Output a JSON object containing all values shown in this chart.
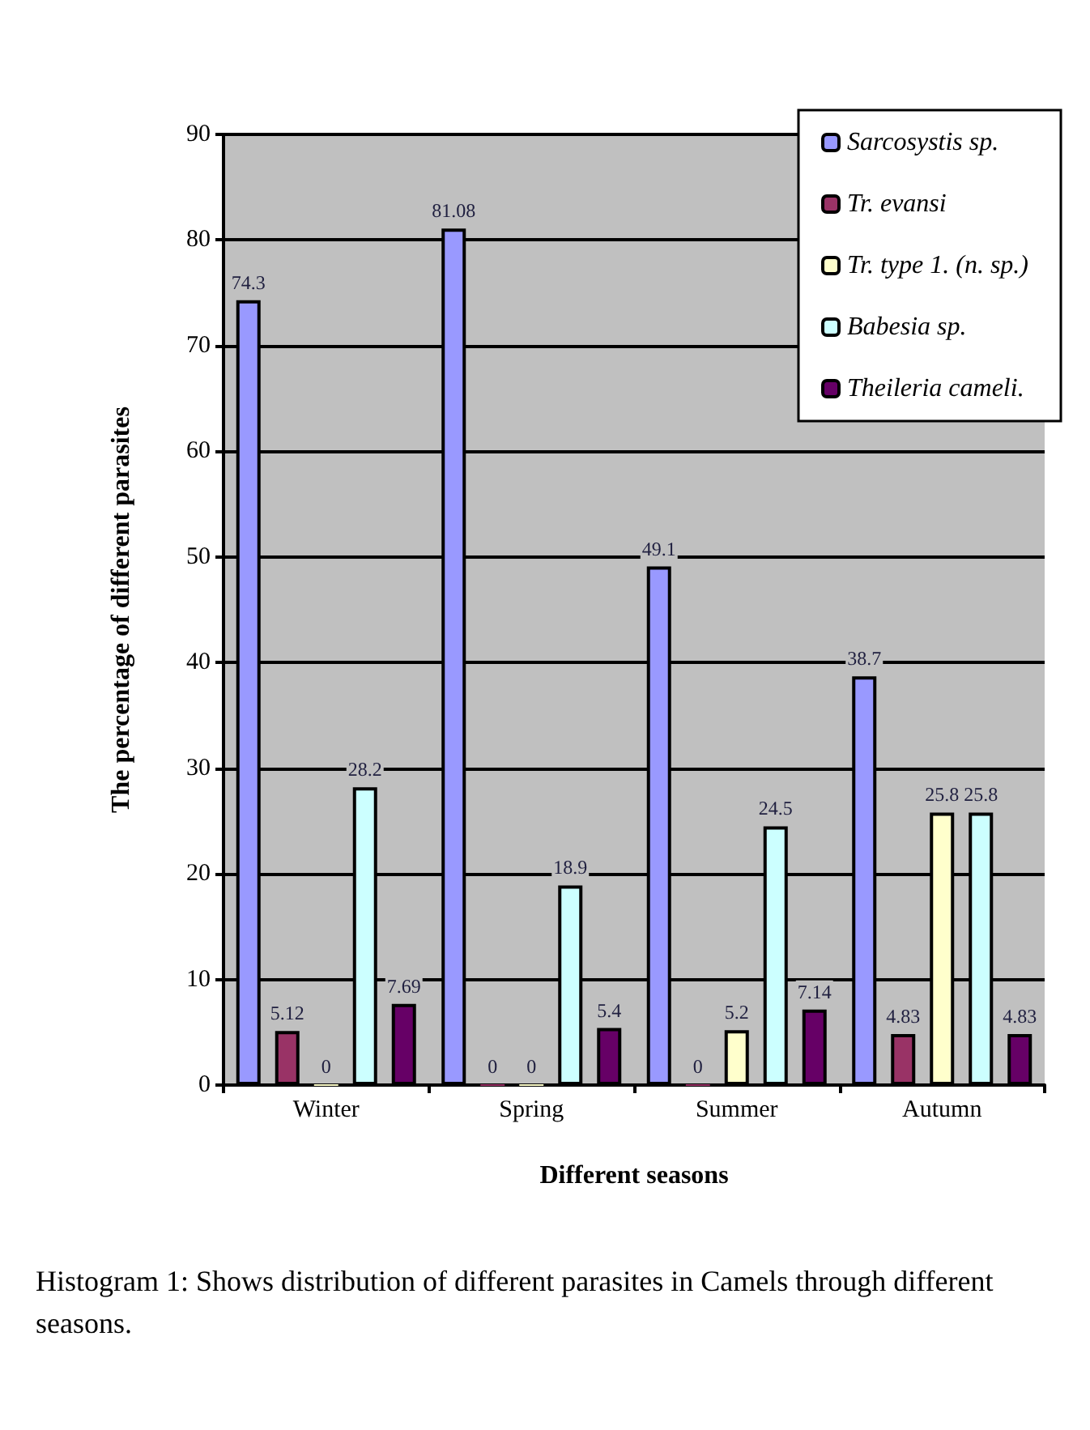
{
  "chart_data": {
    "type": "bar",
    "xlabel": "Different seasons",
    "ylabel": "The percentage of different parasites",
    "categories": [
      "Winter",
      "Spring",
      "Summer",
      "Autumn"
    ],
    "series": [
      {
        "name": "Sarcosystis sp.",
        "color": "#9999ff",
        "values": [
          74.3,
          81.08,
          49.1,
          38.7
        ]
      },
      {
        "name": "Tr. evansi",
        "color": "#993366",
        "values": [
          5.12,
          0,
          0,
          4.83
        ]
      },
      {
        "name": "Tr. type 1. (n. sp.)",
        "color": "#ffffcc",
        "values": [
          0,
          0,
          5.2,
          25.8
        ]
      },
      {
        "name": "Babesia sp.",
        "color": "#ccffff",
        "values": [
          28.2,
          18.9,
          24.5,
          25.8
        ]
      },
      {
        "name": "Theileria cameli.",
        "color": "#660066",
        "values": [
          7.69,
          5.4,
          7.14,
          4.83
        ]
      }
    ],
    "ylim": [
      0,
      90
    ],
    "yticks": [
      0,
      10,
      20,
      30,
      40,
      50,
      60,
      70,
      80,
      90
    ],
    "grid": "y",
    "legend": "top right",
    "data_labels": true,
    "annotations": [
      "Histogram 1: Shows distribution of different parasites in Camels through different seasons."
    ]
  }
}
